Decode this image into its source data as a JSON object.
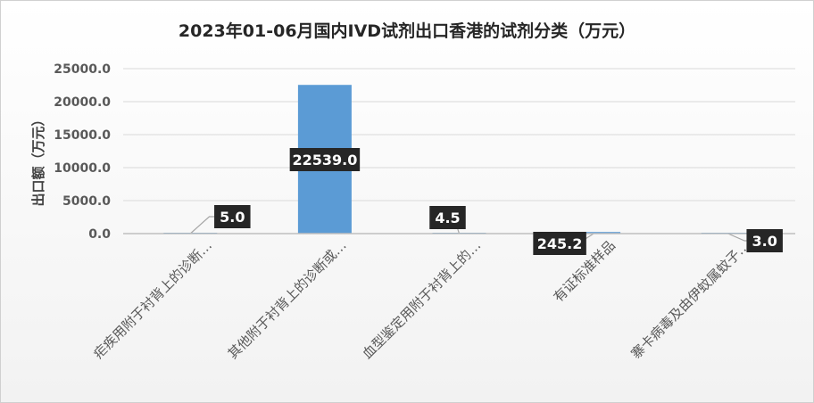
{
  "chart_data": {
    "type": "bar",
    "title": "2023年01-06月国内IVD试剂出口香港的试剂分类（万元）",
    "xlabel": "",
    "ylabel": "出口额（万元）",
    "ylim": [
      0,
      25000
    ],
    "yticks": [
      "0.0",
      "5000.0",
      "10000.0",
      "15000.0",
      "20000.0",
      "25000.0"
    ],
    "grid": true,
    "legend": "none",
    "categories": [
      "疟疾用附于衬背上的诊断…",
      "其他附于衬背上的诊断或…",
      "血型鉴定用附于衬背上的…",
      "有证标准样品",
      "寨卡病毒及由伊蚊属蚊子…"
    ],
    "series": [
      {
        "values": [
          5.0,
          22539.0,
          4.5,
          245.2,
          3.0
        ]
      }
    ],
    "data_labels": [
      "5.0",
      "22539.0",
      "4.5",
      "245.2",
      "3.0"
    ],
    "colors": {
      "bar": "#5B9BD5",
      "label_bg": "#262626",
      "label_text": "#ffffff",
      "grid": "#d9d9d9",
      "axis": "#bfbfbf",
      "text": "#595959",
      "title": "#262626"
    }
  }
}
